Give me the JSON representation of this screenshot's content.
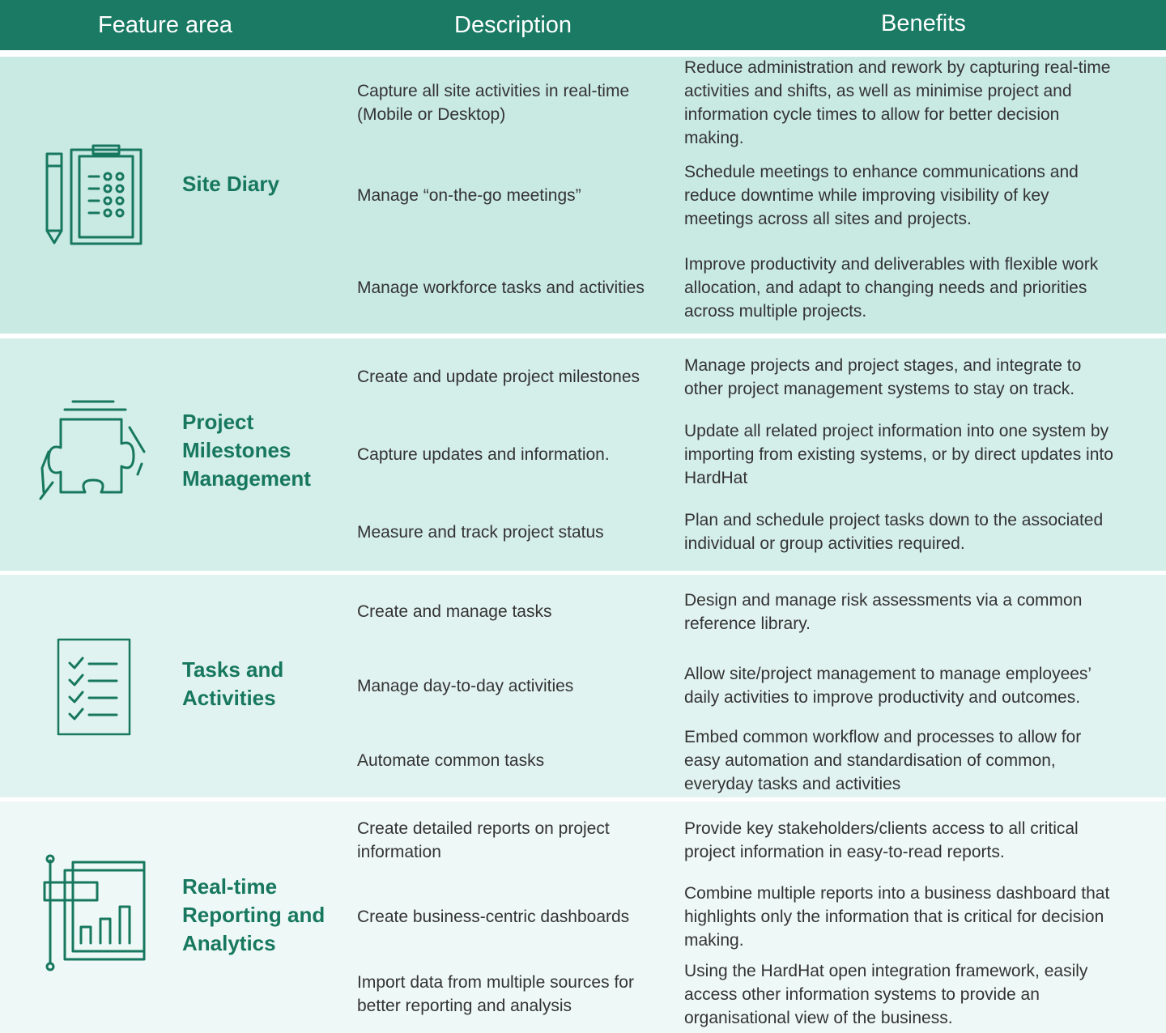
{
  "header": {
    "columns": [
      "Feature area",
      "Description",
      "Benefits"
    ]
  },
  "rows": [
    {
      "feature": "Site Diary",
      "items": [
        {
          "description": "Capture all site activities in real-time (Mobile or Desktop)",
          "benefit": "Reduce administration and rework by capturing real-time activities and shifts, as well as minimise project and information cycle times to allow for better decision making."
        },
        {
          "description": "Manage “on-the-go meetings”",
          "benefit": "Schedule meetings to enhance communications and reduce downtime while improving visibility of key meetings across all sites and projects."
        },
        {
          "description": "Manage workforce tasks and activities",
          "benefit": "Improve productivity and deliverables with flexible work allocation, and adapt to changing needs and priorities across multiple projects."
        }
      ]
    },
    {
      "feature": "Project Milestones Management",
      "items": [
        {
          "description": "Create and update project milestones",
          "benefit": "Manage projects and project stages, and integrate to other project management systems to stay on track."
        },
        {
          "description": "Capture updates and information.",
          "benefit": "Update all related project information into one system by importing from existing systems, or by direct updates into HardHat"
        },
        {
          "description": "Measure and track project status",
          "benefit": "Plan and schedule project tasks down to the associated individual or group activities required."
        }
      ]
    },
    {
      "feature": "Tasks and Activities",
      "items": [
        {
          "description": "Create and manage tasks",
          "benefit": "Design and manage risk assessments via a common reference library."
        },
        {
          "description": "Manage day-to-day activities",
          "benefit": "Allow site/project management to manage employees’ daily activities to improve productivity and outcomes."
        },
        {
          "description": "Automate common tasks",
          "benefit": "Embed common workflow and processes to allow for easy automation and standardisation of common, everyday tasks and activities"
        }
      ]
    },
    {
      "feature": "Real-time Reporting and Analytics",
      "items": [
        {
          "description": "Create detailed reports on project information",
          "benefit": "Provide key stakeholders/clients access to all critical project information in easy-to-read reports."
        },
        {
          "description": "Create business-centric dashboards",
          "benefit": "Combine multiple reports into a business dashboard that highlights only the information that is critical for decision making."
        },
        {
          "description": "Import data from multiple sources for better reporting and analysis",
          "benefit": "Using the HardHat open integration framework, easily access other information systems to provide an organisational view of the business."
        }
      ]
    }
  ]
}
